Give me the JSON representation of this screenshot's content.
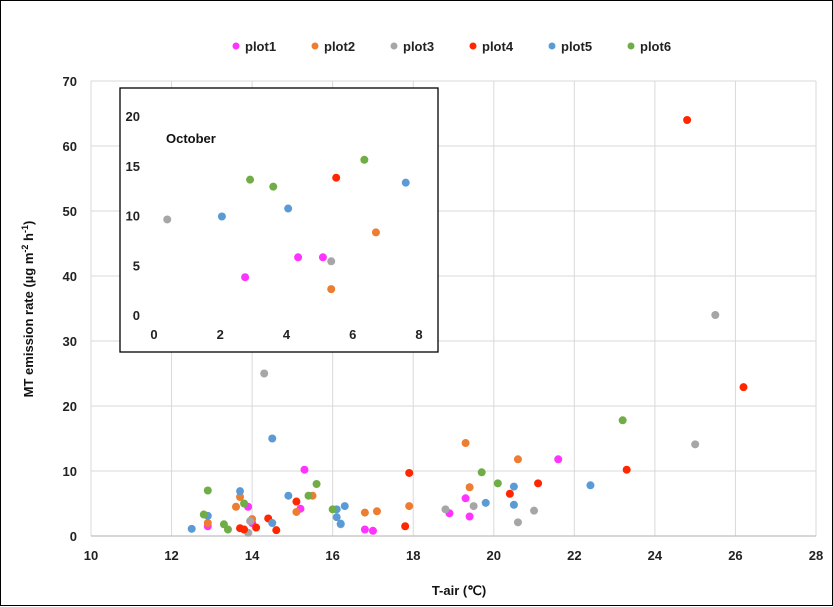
{
  "chart_data": [
    {
      "type": "scatter",
      "title": "",
      "xlabel": "T-air (℃)",
      "ylabel": "MT emission rate (µg m-2 h-1)",
      "ylabel_parts": {
        "main": "MT emission rate (µg m",
        "sup1": "-2",
        "mid": " h",
        "sup2": "-1",
        "end": ")"
      },
      "xlim": [
        10,
        28
      ],
      "ylim": [
        0,
        70
      ],
      "xticks": [
        "10",
        "12",
        "14",
        "16",
        "18",
        "20",
        "22",
        "24",
        "26",
        "28"
      ],
      "yticks": [
        "0",
        "10",
        "20",
        "30",
        "40",
        "50",
        "60",
        "70"
      ],
      "grid": true,
      "legend_position": "top",
      "series": [
        {
          "name": "plot1",
          "color": "#ff33ff",
          "points": [
            [
              12.9,
              1.5
            ],
            [
              13.9,
              4.5
            ],
            [
              14.0,
              2.0
            ],
            [
              15.2,
              4.2
            ],
            [
              15.3,
              10.2
            ],
            [
              16.8,
              1.0
            ],
            [
              17.0,
              0.8
            ],
            [
              18.9,
              3.5
            ],
            [
              19.3,
              5.8
            ],
            [
              19.4,
              3.0
            ],
            [
              21.6,
              11.8
            ]
          ]
        },
        {
          "name": "plot2",
          "color": "#ed7d31",
          "points": [
            [
              12.9,
              2.0
            ],
            [
              13.6,
              4.5
            ],
            [
              13.7,
              6.0
            ],
            [
              14.0,
              2.6
            ],
            [
              15.1,
              3.7
            ],
            [
              15.5,
              6.2
            ],
            [
              16.8,
              3.6
            ],
            [
              17.1,
              3.8
            ],
            [
              17.9,
              4.6
            ],
            [
              19.3,
              14.3
            ],
            [
              19.4,
              7.5
            ],
            [
              20.6,
              11.8
            ]
          ]
        },
        {
          "name": "plot3",
          "color": "#a6a6a6",
          "points": [
            [
              13.9,
              0.5
            ],
            [
              13.95,
              2.3
            ],
            [
              14.3,
              25.0
            ],
            [
              16.2,
              1.8
            ],
            [
              18.8,
              4.1
            ],
            [
              19.5,
              4.6
            ],
            [
              20.6,
              2.1
            ],
            [
              21.0,
              3.9
            ],
            [
              25.0,
              14.1
            ],
            [
              25.5,
              34.0
            ]
          ]
        },
        {
          "name": "plot4",
          "color": "#ff2600",
          "points": [
            [
              13.7,
              1.2
            ],
            [
              13.8,
              1.0
            ],
            [
              14.1,
              1.3
            ],
            [
              14.4,
              2.7
            ],
            [
              14.6,
              0.9
            ],
            [
              15.1,
              5.3
            ],
            [
              17.8,
              1.5
            ],
            [
              17.9,
              9.7
            ],
            [
              20.4,
              6.5
            ],
            [
              21.1,
              8.1
            ],
            [
              23.3,
              10.2
            ],
            [
              24.8,
              64.0
            ],
            [
              26.2,
              22.9
            ]
          ]
        },
        {
          "name": "plot5",
          "color": "#5b9bd5",
          "points": [
            [
              12.5,
              1.1
            ],
            [
              12.9,
              3.1
            ],
            [
              13.7,
              6.9
            ],
            [
              14.5,
              15.0
            ],
            [
              14.5,
              2.0
            ],
            [
              14.9,
              6.2
            ],
            [
              16.1,
              4.1
            ],
            [
              16.1,
              2.9
            ],
            [
              16.2,
              1.9
            ],
            [
              16.3,
              4.6
            ],
            [
              19.8,
              5.1
            ],
            [
              20.5,
              7.6
            ],
            [
              20.5,
              4.8
            ],
            [
              22.4,
              7.8
            ]
          ]
        },
        {
          "name": "plot6",
          "color": "#70ad47",
          "points": [
            [
              12.8,
              3.3
            ],
            [
              12.9,
              7.0
            ],
            [
              13.3,
              1.8
            ],
            [
              13.4,
              1.0
            ],
            [
              13.8,
              5.0
            ],
            [
              15.4,
              6.2
            ],
            [
              15.6,
              8.0
            ],
            [
              16.0,
              4.1
            ],
            [
              19.7,
              9.8
            ],
            [
              20.1,
              8.1
            ],
            [
              23.2,
              17.8
            ]
          ]
        }
      ]
    },
    {
      "type": "scatter",
      "title": "October",
      "xlim": [
        0,
        8
      ],
      "ylim": [
        0,
        20
      ],
      "xticks": [
        "0",
        "2",
        "4",
        "6",
        "8"
      ],
      "yticks": [
        "0",
        "5",
        "10",
        "15",
        "20"
      ],
      "grid": false,
      "series": [
        {
          "name": "plot1",
          "points": [
            [
              2.75,
              3.8
            ],
            [
              4.35,
              5.8
            ],
            [
              5.1,
              5.8
            ]
          ]
        },
        {
          "name": "plot2",
          "points": [
            [
              5.35,
              2.6
            ],
            [
              6.7,
              8.3
            ]
          ]
        },
        {
          "name": "plot3",
          "points": [
            [
              0.4,
              9.6
            ],
            [
              5.35,
              5.4
            ]
          ]
        },
        {
          "name": "plot4",
          "points": [
            [
              5.5,
              13.8
            ]
          ]
        },
        {
          "name": "plot5",
          "points": [
            [
              2.05,
              9.9
            ],
            [
              4.05,
              10.7
            ],
            [
              7.6,
              13.3
            ]
          ]
        },
        {
          "name": "plot6",
          "points": [
            [
              2.9,
              13.6
            ],
            [
              3.6,
              12.9
            ],
            [
              6.35,
              15.6
            ]
          ]
        }
      ]
    }
  ]
}
